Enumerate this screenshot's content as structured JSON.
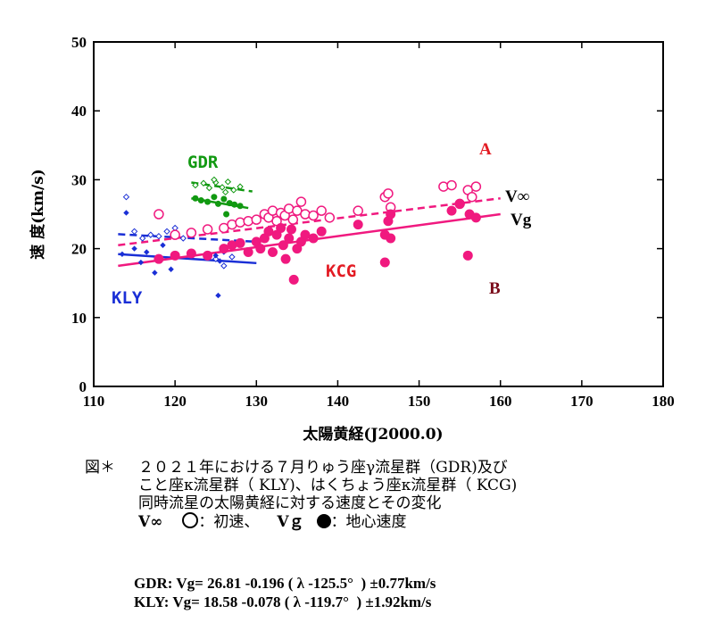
{
  "chart_data": {
    "type": "scatter",
    "xlabel": "太陽黄経(J2000.0)",
    "ylabel": "速 度(km/s)",
    "xlim": [
      110,
      180
    ],
    "ylim": [
      0,
      50
    ],
    "xticks": [
      "110",
      "120",
      "130",
      "140",
      "150",
      "160",
      "170",
      "180"
    ],
    "yticks": [
      "0",
      "10",
      "20",
      "30",
      "40",
      "50"
    ],
    "annotations": [
      "GDR",
      "KLY",
      "KCG",
      "A",
      "B",
      "V∞",
      "Vg"
    ],
    "colors": {
      "GDR": "#119911",
      "KLY": "#1a2fd6",
      "KCG": "#f0197f",
      "A": "#e31b23",
      "B": "#7a0c1a"
    },
    "series": [
      {
        "name": "GDR",
        "marker": "open-diamond-small",
        "kind": "V∞",
        "x": [
          122.5,
          123.5,
          124.2,
          125.0,
          125.8,
          126.5,
          127.2,
          128.0,
          124.8,
          126.2
        ],
        "y": [
          29.2,
          29.5,
          28.8,
          29.6,
          28.9,
          29.7,
          28.5,
          29.0,
          30.0,
          28.2
        ]
      },
      {
        "name": "GDR",
        "marker": "filled-dot",
        "kind": "Vg",
        "x": [
          122.5,
          123.2,
          124.0,
          124.8,
          125.3,
          126.0,
          126.7,
          127.3,
          128.0,
          126.3
        ],
        "y": [
          27.3,
          27.0,
          26.8,
          27.5,
          26.5,
          27.2,
          26.6,
          26.4,
          26.2,
          25.0
        ]
      },
      {
        "name": "KLY",
        "marker": "open-diamond-small",
        "kind": "V∞",
        "x": [
          114.0,
          115.0,
          116.0,
          117.0,
          118.0,
          119.0,
          120.0,
          121.0,
          125.0,
          126.0,
          127.0
        ],
        "y": [
          27.5,
          22.5,
          21.5,
          22.0,
          21.8,
          22.5,
          23.0,
          21.5,
          18.5,
          17.5,
          18.8
        ]
      },
      {
        "name": "KLY",
        "marker": "filled-diamond-small",
        "kind": "Vg",
        "x": [
          113.5,
          114.0,
          115.0,
          115.8,
          116.5,
          117.5,
          118.5,
          119.5,
          125.0,
          125.5,
          126.0,
          125.3
        ],
        "y": [
          19.2,
          25.2,
          20.0,
          18.0,
          19.5,
          16.5,
          20.5,
          17.0,
          19.0,
          18.2,
          19.5,
          13.2
        ]
      },
      {
        "name": "KCG",
        "marker": "open-circle",
        "kind": "V∞",
        "x": [
          118,
          120,
          122,
          124,
          126,
          127,
          128,
          129,
          130,
          131,
          131.5,
          132,
          132.5,
          133,
          133.5,
          134,
          134.5,
          135,
          135.5,
          136,
          137,
          138,
          139,
          142.5,
          145.8,
          146.2,
          146.5,
          153,
          154,
          155,
          156,
          156.5,
          157
        ],
        "y": [
          25.0,
          22.0,
          22.3,
          22.8,
          23.0,
          23.5,
          23.8,
          24.0,
          24.2,
          25.0,
          24.5,
          25.5,
          24.0,
          25.2,
          24.8,
          25.8,
          24.2,
          25.5,
          26.8,
          25.0,
          24.8,
          25.5,
          24.5,
          25.5,
          27.5,
          28.0,
          26.0,
          29.0,
          29.2,
          26.5,
          28.5,
          27.5,
          29.0
        ]
      },
      {
        "name": "KCG",
        "marker": "filled-circle",
        "kind": "Vg",
        "x": [
          118,
          120,
          122,
          124,
          126,
          127,
          128,
          129,
          130,
          130.5,
          131,
          131.5,
          132,
          132.5,
          133,
          133.3,
          133.6,
          134,
          134.3,
          134.6,
          135,
          135.5,
          136,
          137,
          138,
          142.5,
          145.8,
          145.8,
          146.2,
          146.5,
          146.5,
          154,
          155,
          156,
          156.2,
          157
        ],
        "y": [
          18.5,
          19.0,
          19.3,
          19.0,
          20.0,
          20.5,
          20.8,
          19.5,
          21.0,
          20.0,
          21.5,
          22.5,
          19.5,
          22.0,
          23.0,
          20.5,
          18.5,
          21.5,
          22.8,
          15.5,
          20.0,
          21.0,
          22.0,
          21.5,
          22.5,
          23.5,
          18.0,
          22.0,
          24.0,
          25.0,
          21.5,
          25.5,
          26.5,
          19.0,
          25.0,
          24.5
        ]
      }
    ],
    "trend_lines": [
      {
        "name": "GDR",
        "style": "dashed",
        "color": "#119911",
        "x": [
          122,
          129.5
        ],
        "y": [
          29.6,
          28.3
        ]
      },
      {
        "name": "GDR",
        "style": "solid",
        "color": "#119911",
        "x": [
          122,
          129
        ],
        "y": [
          27.3,
          25.9
        ]
      },
      {
        "name": "KLY",
        "style": "dashed",
        "color": "#1a2fd6",
        "x": [
          113,
          130
        ],
        "y": [
          22.1,
          21.0
        ]
      },
      {
        "name": "KLY",
        "style": "solid",
        "color": "#1a2fd6",
        "x": [
          113,
          130
        ],
        "y": [
          19.2,
          17.9
        ]
      },
      {
        "name": "KCG",
        "style": "dashed",
        "color": "#f0197f",
        "x": [
          113,
          160
        ],
        "y": [
          20.5,
          27.3
        ]
      },
      {
        "name": "KCG",
        "style": "solid",
        "color": "#f0197f",
        "x": [
          113,
          160
        ],
        "y": [
          17.5,
          25.0
        ]
      }
    ]
  },
  "caption": {
    "label": "図＊",
    "line1": "２０２１年における７月りゅう座γ流星群（GDR)及び",
    "line2": "こと座κ流星群（ KLY)、はくちょう座κ流星群（ KCG)",
    "line3": "同時流星の太陽黄経に対する速度とその変化",
    "legend_vinf": "V∞",
    "legend_vinf_text": "：初速、",
    "legend_vg": "Vｇ",
    "legend_vg_text": "：地心速度"
  },
  "formulas": {
    "gdr": "GDR: Vg= 26.81 -0.196 ( λ -125.5°  ) ±0.77km/s",
    "kly": "KLY: Vg= 18.58 -0.078 ( λ -119.7°  ) ±1.92km/s"
  }
}
